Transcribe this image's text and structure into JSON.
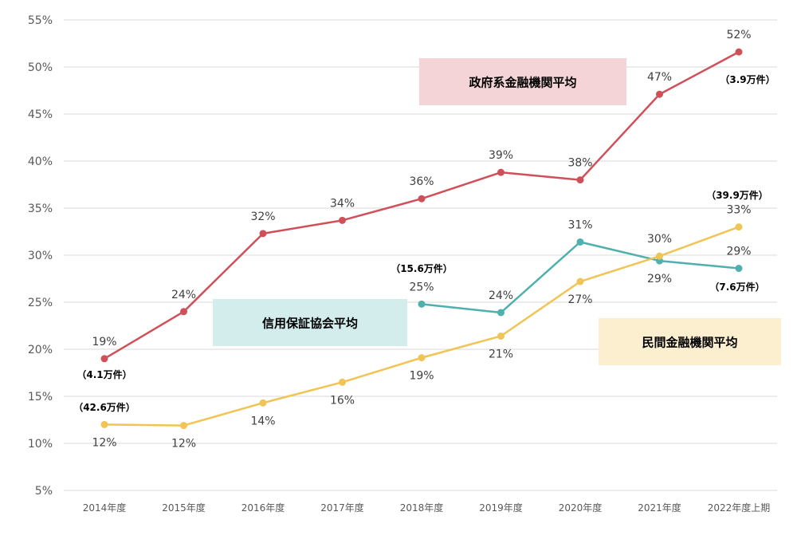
{
  "chart_data": {
    "type": "line",
    "categories": [
      "2014年度",
      "2015年度",
      "2016年度",
      "2017年度",
      "2018年度",
      "2019年度",
      "2020年度",
      "2021年度",
      "2022年度上期"
    ],
    "ylim": [
      5,
      55
    ],
    "y_ticks": [
      "5%",
      "10%",
      "15%",
      "20%",
      "25%",
      "30%",
      "35%",
      "40%",
      "45%",
      "50%",
      "55%"
    ],
    "grid": true,
    "series": [
      {
        "name": "政府系金融機関平均",
        "color": "#d0505a",
        "legend_bg": "#f4d4d6",
        "values": [
          19,
          24,
          32.3,
          33.7,
          36,
          38.8,
          38,
          47.1,
          51.6
        ],
        "labels": [
          "19%",
          "24%",
          "32%",
          "34%",
          "36%",
          "39%",
          "38%",
          "47%",
          "52%"
        ],
        "label_pos": [
          "above",
          "above",
          "above",
          "above",
          "above",
          "above",
          "above",
          "above",
          "above"
        ],
        "notes": [
          {
            "index": 0,
            "text": "（4.1万件）"
          },
          {
            "index": 8,
            "text": "（3.9万件）"
          }
        ]
      },
      {
        "name": "信用保証協会平均",
        "color": "#4fb0ad",
        "legend_bg": "#d3ecec",
        "values": [
          null,
          null,
          null,
          null,
          24.8,
          23.9,
          31.4,
          29.4,
          28.6
        ],
        "labels": [
          null,
          null,
          null,
          null,
          "25%",
          "24%",
          "31%",
          "29%",
          "29%"
        ],
        "label_pos": [
          null,
          null,
          null,
          null,
          "above",
          "above",
          "above",
          "below",
          "above"
        ],
        "notes": [
          {
            "index": 4,
            "text": "（15.6万件）"
          },
          {
            "index": 8,
            "text": "（7.6万件）"
          }
        ]
      },
      {
        "name": "民間金融機関平均",
        "color": "#f0c455",
        "legend_bg": "#fbefd0",
        "values": [
          12,
          11.9,
          14.3,
          16.5,
          19.1,
          21.4,
          27.2,
          29.9,
          33
        ],
        "labels": [
          "12%",
          "12%",
          "14%",
          "16%",
          "19%",
          "21%",
          "27%",
          "30%",
          "33%"
        ],
        "label_pos": [
          "below",
          "below",
          "below",
          "below",
          "below",
          "below",
          "below",
          "above",
          "above"
        ],
        "notes": [
          {
            "index": 0,
            "text": "（42.6万件）"
          },
          {
            "index": 8,
            "text": "（39.9万件）"
          }
        ]
      }
    ]
  }
}
